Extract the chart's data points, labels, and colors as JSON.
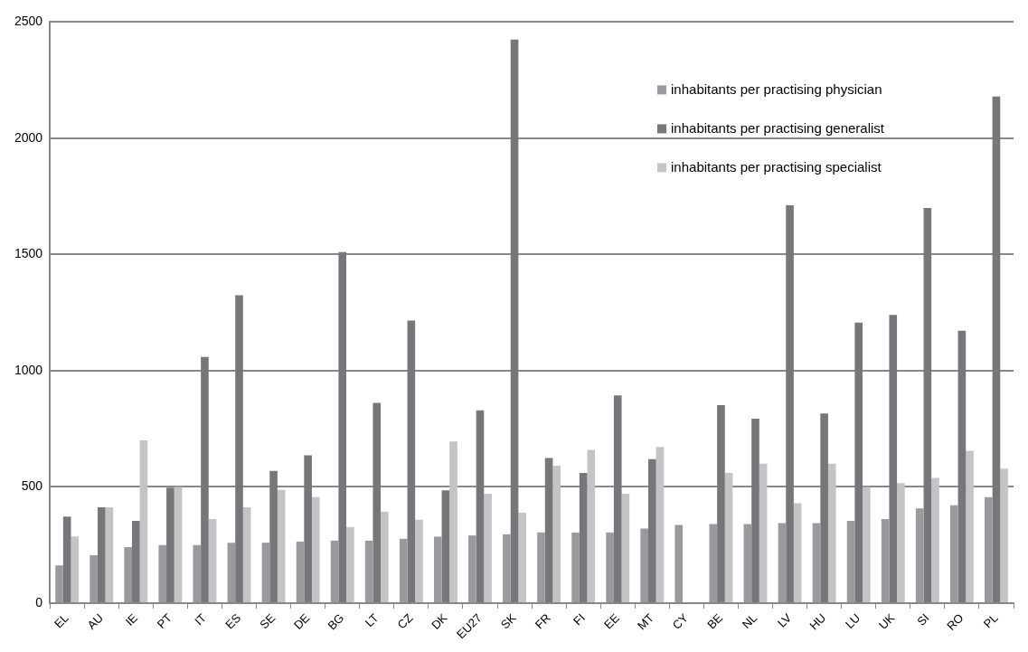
{
  "chart_data": {
    "type": "bar",
    "categories": [
      "EL",
      "AU",
      "IE",
      "PT",
      "IT",
      "ES",
      "SE",
      "DE",
      "BG",
      "LT",
      "CZ",
      "DK",
      "EU27",
      "SK",
      "FR",
      "FI",
      "EE",
      "MT",
      "CY",
      "BE",
      "NL",
      "LV",
      "HU",
      "LU",
      "UK",
      "SI",
      "RO",
      "PL"
    ],
    "series": [
      {
        "name": "inhabitants per practising physician",
        "color": "#9a9a9e",
        "values": [
          162,
          206,
          241,
          250,
          250,
          260,
          260,
          265,
          269,
          269,
          277,
          286,
          291,
          296,
          304,
          304,
          304,
          321,
          336,
          340,
          340,
          344,
          344,
          354,
          362,
          407,
          421,
          456
        ]
      },
      {
        "name": "inhabitants per practising generalist",
        "color": "#77777b",
        "values": [
          372,
          412,
          354,
          497,
          1059,
          1325,
          569,
          636,
          1510,
          862,
          1216,
          485,
          830,
          2425,
          624,
          560,
          894,
          619,
          null,
          852,
          794,
          1712,
          816,
          1207,
          1240,
          1700,
          1172,
          2180
        ]
      },
      {
        "name": "inhabitants per practising specialist",
        "color": "#c4c4c6",
        "values": [
          287,
          412,
          700,
          500,
          362,
          412,
          487,
          456,
          327,
          394,
          359,
          695,
          471,
          389,
          591,
          659,
          471,
          672,
          null,
          560,
          600,
          430,
          600,
          500,
          516,
          539,
          655,
          579
        ]
      }
    ],
    "ylim": [
      0,
      2500
    ],
    "yticks": [
      0,
      500,
      1000,
      1500,
      2000,
      2500
    ],
    "grid": "y",
    "legend": "top right"
  }
}
